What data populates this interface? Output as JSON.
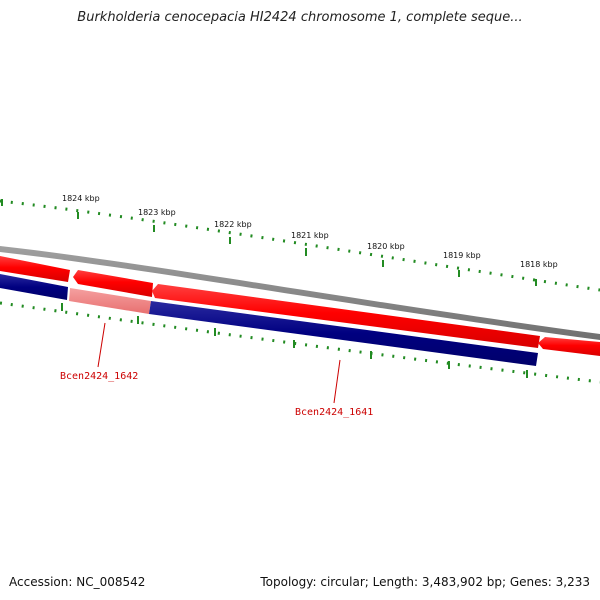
{
  "title": "Burkholderia cenocepacia HI2424 chromosome 1, complete seque...",
  "footer": {
    "accession": "Accession: NC_008542",
    "summary": "Topology: circular; Length: 3,483,902 bp; Genes: 3,233"
  },
  "scale_labels": [
    "1824 kbp",
    "1823 kbp",
    "1822 kbp",
    "1821 kbp",
    "1820 kbp",
    "1819 kbp",
    "1818 kbp"
  ],
  "genes": [
    {
      "label": "Bcen2424_1642"
    },
    {
      "label": "Bcen2424_1641"
    }
  ],
  "colors": {
    "forward_strand": "#ff0000",
    "reverse_strand": "#000080",
    "selected_gene": "#f08080",
    "backbone": "#808080",
    "ticks": "#228b22",
    "gene_label": "#cc0000"
  }
}
